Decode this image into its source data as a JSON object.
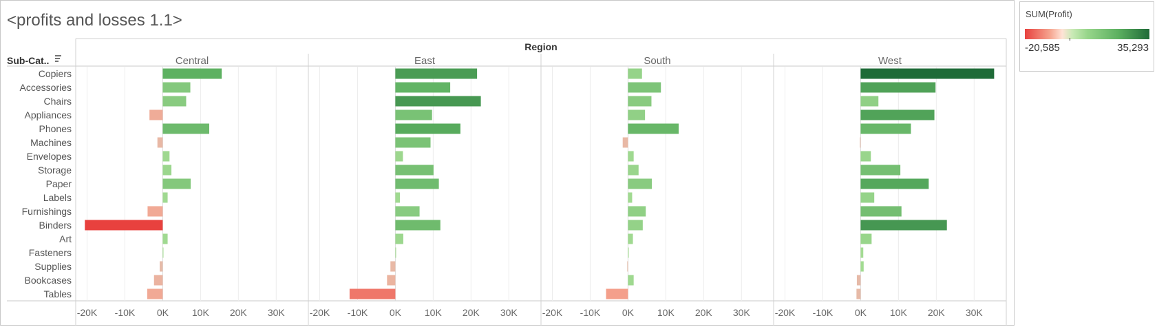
{
  "sheet": {
    "title": "<profits and losses 1.1>"
  },
  "legend": {
    "title": "SUM(Profit)",
    "min_label": "-20,585",
    "max_label": "35,293",
    "min_value": -20585,
    "max_value": 35293
  },
  "colors": {
    "negative_strong": "#e8413e",
    "negative_mid": "#f5a38e",
    "negative_light": "#e3c0ae",
    "positive_light": "#a6dd95",
    "positive_mid": "#5cb060",
    "positive_dark": "#1f6b38",
    "gridline": "#ececec",
    "axis_text": "#666666"
  },
  "chart_data": {
    "type": "bar",
    "orientation": "horizontal",
    "title": "<profits and losses 1.1>",
    "column_header": "Region",
    "row_header": "Sub-Cat..",
    "measure": "SUM(Profit)",
    "categories": [
      "Copiers",
      "Accessories",
      "Chairs",
      "Appliances",
      "Phones",
      "Machines",
      "Envelopes",
      "Storage",
      "Paper",
      "Labels",
      "Furnishings",
      "Binders",
      "Art",
      "Fasteners",
      "Supplies",
      "Bookcases",
      "Tables"
    ],
    "x_ticks": [
      -20000,
      -10000,
      0,
      10000,
      20000,
      30000
    ],
    "x_tick_labels": [
      "-20K",
      "-10K",
      "0K",
      "10K",
      "20K",
      "30K"
    ],
    "xlim": [
      -23000,
      38500
    ],
    "grid": true,
    "series": [
      {
        "name": "Central",
        "values": [
          15600,
          7300,
          6200,
          -3500,
          12300,
          -1400,
          1800,
          2300,
          7400,
          1300,
          -4000,
          -20585,
          1300,
          200,
          -800,
          -2300,
          -4100
        ]
      },
      {
        "name": "East",
        "values": [
          21600,
          14500,
          22600,
          9700,
          17200,
          9300,
          2000,
          10100,
          11500,
          1200,
          6400,
          11900,
          2100,
          200,
          -1300,
          -2200,
          -12100
        ]
      },
      {
        "name": "South",
        "values": [
          3700,
          8700,
          6200,
          4500,
          13400,
          -1400,
          1500,
          2800,
          6300,
          1100,
          4700,
          3900,
          1300,
          200,
          -200,
          1500,
          -5800
        ]
      },
      {
        "name": "West",
        "values": [
          35293,
          19800,
          4700,
          19500,
          13300,
          -200,
          2700,
          10500,
          18000,
          3600,
          10800,
          22800,
          2900,
          700,
          800,
          -1000,
          -1100
        ]
      }
    ]
  }
}
